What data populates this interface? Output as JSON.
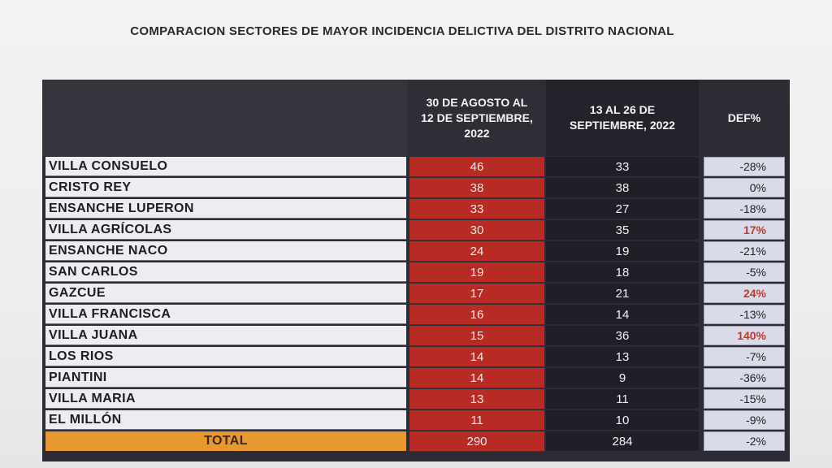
{
  "title": "COMPARACION SECTORES DE MAYOR INCIDENCIA DELICTIVA DEL DISTRITO NACIONAL",
  "headers": {
    "period1": "30 DE AGOSTO AL 12 DE SEPTIEMBRE, 2022",
    "period2": "13 AL 26 DE SEPTIEMBRE, 2022",
    "diff": "DEF%"
  },
  "rows": [
    {
      "sector": "VILLA CONSUELO",
      "p1": "46",
      "p2": "33",
      "diff": "-28%"
    },
    {
      "sector": "CRISTO REY",
      "p1": "38",
      "p2": "38",
      "diff": "0%"
    },
    {
      "sector": "ENSANCHE LUPERON",
      "p1": "33",
      "p2": "27",
      "diff": "-18%"
    },
    {
      "sector": "VILLA AGRÍCOLAS",
      "p1": "30",
      "p2": "35",
      "diff": "17%"
    },
    {
      "sector": "ENSANCHE NACO",
      "p1": "24",
      "p2": "19",
      "diff": "-21%"
    },
    {
      "sector": "SAN CARLOS",
      "p1": "19",
      "p2": "18",
      "diff": "-5%"
    },
    {
      "sector": "GAZCUE",
      "p1": "17",
      "p2": "21",
      "diff": "24%"
    },
    {
      "sector": "VILLA FRANCISCA",
      "p1": "16",
      "p2": "14",
      "diff": "-13%"
    },
    {
      "sector": "VILLA JUANA",
      "p1": "15",
      "p2": "36",
      "diff": "140%"
    },
    {
      "sector": "LOS RIOS",
      "p1": "14",
      "p2": "13",
      "diff": "-7%"
    },
    {
      "sector": "PIANTINI",
      "p1": "14",
      "p2": "9",
      "diff": "-36%"
    },
    {
      "sector": "VILLA MARIA",
      "p1": "13",
      "p2": "11",
      "diff": "-15%"
    },
    {
      "sector": "EL MILLÓN",
      "p1": "11",
      "p2": "10",
      "diff": "-9%"
    }
  ],
  "total": {
    "label": "TOTAL",
    "p1": "290",
    "p2": "284",
    "diff": "-2%"
  },
  "colors": {
    "period1_fill": "#b82a24",
    "period2_fill": "#1f2027",
    "header_fill": "#2e2f36",
    "total_fill": "#e9972f",
    "increase_text": "#c0392b"
  }
}
